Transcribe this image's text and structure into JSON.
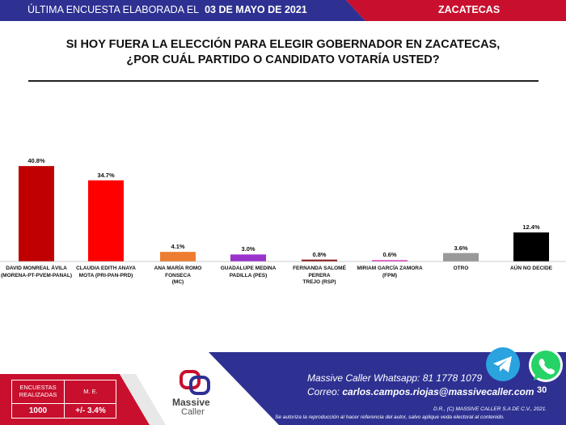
{
  "header": {
    "survey_prefix": "ÚLTIMA ENCUESTA ELABORADA EL",
    "survey_date": "03 DE MAYO DE 2021",
    "region": "ZACATECAS"
  },
  "question": {
    "line1": "SI HOY FUERA LA ELECCIÓN PARA ELEGIR GOBERNADOR EN ZACATECAS,",
    "line2": "¿POR CUÁL PARTIDO O CANDIDATO VOTARÍA USTED?"
  },
  "chart_data": {
    "type": "bar",
    "categories": [
      [
        "DAVID MONREAL ÁVILA",
        "(MORENA-PT-PVEM-PANAL)"
      ],
      [
        "CLAUDIA EDITH ANAYA",
        "MOTA (PRI-PAN-PRD)"
      ],
      [
        "ANA MARÍA ROMO FONSECA",
        "(MC)"
      ],
      [
        "GUADALUPE MEDINA",
        "PADILLA  (PES)"
      ],
      [
        "FERNANDA SALOMÉ PERERA",
        "TREJO (RSP)"
      ],
      [
        "MIRIAM GARCÍA ZAMORA",
        "(FPM)"
      ],
      [
        "OTRO"
      ],
      [
        "AÚN NO DECIDE"
      ]
    ],
    "values": [
      40.8,
      34.7,
      4.1,
      3.0,
      0.8,
      0.6,
      3.6,
      12.4
    ],
    "value_labels": [
      "40.8%",
      "34.7%",
      "4.1%",
      "3.0%",
      "0.8%",
      "0.6%",
      "3.6%",
      "12.4%"
    ],
    "colors": [
      "#c00000",
      "#ff0000",
      "#ed7d31",
      "#9933cc",
      "#8b1a1a",
      "#e040c0",
      "#999999",
      "#000000"
    ],
    "ylim": [
      0,
      45
    ]
  },
  "footer": {
    "table_header_1": "ENCUESTAS REALIZADAS",
    "table_header_2": "M. E.",
    "table_value_1": "1000",
    "table_value_2": "+/- 3.4%",
    "brand_line1": "Massive",
    "brand_line2": "Caller",
    "whatsapp_label": "Massive Caller Whatsapp:",
    "whatsapp_number": "81 1778 1079",
    "email_label": "Correo:",
    "email": "carlos.campos.riojas@massivecaller.com",
    "copyright": "D.R., (C) MASSIVE CALLER S.A DE C.V., 2021.",
    "disclaimer": "Se autoriza la reproducción al hacer referencia del autor, salvo aplique veda electoral al contenido.",
    "page_number": "30",
    "icon_telegram": "telegram-icon",
    "icon_whatsapp": "whatsapp-icon"
  }
}
